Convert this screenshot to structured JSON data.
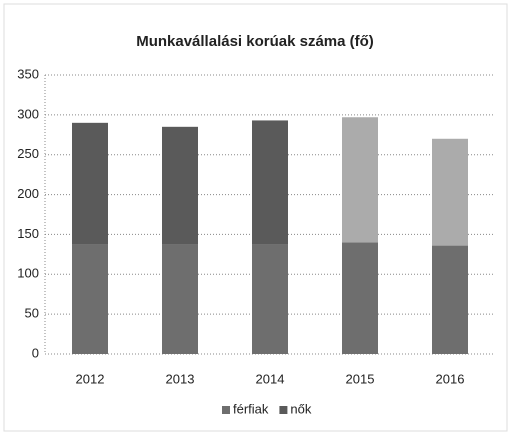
{
  "chart_data": {
    "type": "stacked_bar",
    "title": "Munkavállalási korúak száma (fő)",
    "categories": [
      "2012",
      "2013",
      "2014",
      "2015",
      "2016"
    ],
    "series": [
      {
        "name": "férfiak",
        "color": "#6e6e6e",
        "values": [
          137,
          137,
          137,
          140,
          136
        ]
      },
      {
        "name": "nők",
        "color": "#5a5a5a",
        "colors": [
          "#5a5a5a",
          "#5a5a5a",
          "#5a5a5a",
          "#ababab",
          "#ababab"
        ],
        "values": [
          153,
          148,
          156,
          157,
          134
        ]
      }
    ],
    "ylim": [
      0,
      350
    ],
    "yticks": [
      0,
      50,
      100,
      150,
      200,
      250,
      300,
      350
    ],
    "grid": true,
    "legend": "bottom"
  }
}
